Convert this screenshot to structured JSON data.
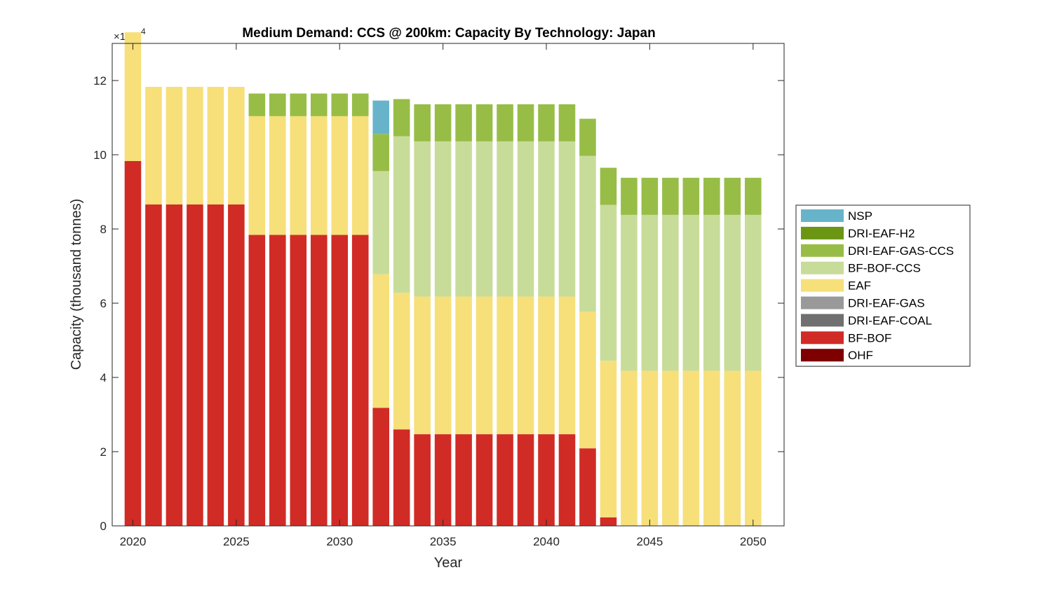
{
  "chart_data": {
    "type": "bar",
    "stacked": true,
    "title": "Medium Demand: CCS @ 200km: Capacity By Technology: Japan",
    "xlabel": "Year",
    "ylabel": "Capacity (thousand tonnes)",
    "y_multiplier_label": "×10",
    "y_multiplier_exponent": "4",
    "xlim": [
      2019,
      2051.5
    ],
    "ylim": [
      0,
      130000
    ],
    "x_ticks": [
      2020,
      2025,
      2030,
      2035,
      2040,
      2045,
      2050
    ],
    "y_ticks": [
      0,
      20000,
      40000,
      60000,
      80000,
      100000,
      120000
    ],
    "y_tick_labels": [
      "0",
      "2",
      "4",
      "6",
      "8",
      "10",
      "12"
    ],
    "grid": false,
    "legend_position": "right",
    "x": [
      2020,
      2021,
      2022,
      2023,
      2024,
      2025,
      2026,
      2027,
      2028,
      2029,
      2030,
      2031,
      2032,
      2033,
      2034,
      2035,
      2036,
      2037,
      2038,
      2039,
      2040,
      2041,
      2042,
      2043,
      2044,
      2045,
      2046,
      2047,
      2048,
      2049,
      2050
    ],
    "series": [
      {
        "name": "OHF",
        "color": "#7e0000",
        "values": [
          0,
          0,
          0,
          0,
          0,
          0,
          0,
          0,
          0,
          0,
          0,
          0,
          0,
          0,
          0,
          0,
          0,
          0,
          0,
          0,
          0,
          0,
          0,
          0,
          0,
          0,
          0,
          0,
          0,
          0,
          0
        ]
      },
      {
        "name": "BF-BOF",
        "color": "#d12b26",
        "values": [
          98300,
          86600,
          86600,
          86600,
          86600,
          86600,
          78400,
          78400,
          78400,
          78400,
          78400,
          78400,
          31800,
          26000,
          24700,
          24700,
          24700,
          24700,
          24700,
          24700,
          24700,
          24700,
          20900,
          2300,
          0,
          0,
          0,
          0,
          0,
          0,
          0
        ]
      },
      {
        "name": "DRI-EAF-COAL",
        "color": "#707070",
        "values": [
          0,
          0,
          0,
          0,
          0,
          0,
          0,
          0,
          0,
          0,
          0,
          0,
          0,
          0,
          0,
          0,
          0,
          0,
          0,
          0,
          0,
          0,
          0,
          0,
          0,
          0,
          0,
          0,
          0,
          0,
          0
        ]
      },
      {
        "name": "DRI-EAF-GAS",
        "color": "#999999",
        "values": [
          0,
          0,
          0,
          0,
          0,
          0,
          0,
          0,
          0,
          0,
          0,
          0,
          0,
          0,
          0,
          0,
          0,
          0,
          0,
          0,
          0,
          0,
          0,
          0,
          0,
          0,
          0,
          0,
          0,
          0,
          0
        ]
      },
      {
        "name": "EAF",
        "color": "#f7df7a",
        "values": [
          34700,
          31700,
          31700,
          31700,
          31700,
          31700,
          32000,
          32000,
          32000,
          32000,
          32000,
          32000,
          36000,
          36800,
          37100,
          37100,
          37100,
          37100,
          37100,
          37100,
          37100,
          37100,
          36800,
          42200,
          41800,
          41800,
          41800,
          41800,
          41800,
          41800,
          41800
        ]
      },
      {
        "name": "BF-BOF-CCS",
        "color": "#c8dc9a",
        "values": [
          0,
          0,
          0,
          0,
          0,
          0,
          0,
          0,
          0,
          0,
          0,
          0,
          27800,
          42200,
          41800,
          41800,
          41800,
          41800,
          41800,
          41800,
          41800,
          41800,
          42000,
          42000,
          42000,
          42000,
          42000,
          42000,
          42000,
          42000,
          42000
        ]
      },
      {
        "name": "DRI-EAF-GAS-CCS",
        "color": "#97bd47",
        "values": [
          0,
          0,
          0,
          0,
          0,
          0,
          6100,
          6100,
          6100,
          6100,
          6100,
          6100,
          10000,
          10000,
          10000,
          10000,
          10000,
          10000,
          10000,
          10000,
          10000,
          10000,
          10000,
          10000,
          10000,
          10000,
          10000,
          10000,
          10000,
          10000,
          10000
        ]
      },
      {
        "name": "DRI-EAF-H2",
        "color": "#6b9614",
        "values": [
          0,
          0,
          0,
          0,
          0,
          0,
          0,
          0,
          0,
          0,
          0,
          0,
          0,
          0,
          0,
          0,
          0,
          0,
          0,
          0,
          0,
          0,
          0,
          0,
          0,
          0,
          0,
          0,
          0,
          0,
          0
        ]
      },
      {
        "name": "NSP",
        "color": "#67b4ca",
        "values": [
          0,
          0,
          0,
          0,
          0,
          0,
          0,
          0,
          0,
          0,
          0,
          0,
          9000,
          0,
          0,
          0,
          0,
          0,
          0,
          0,
          0,
          0,
          0,
          0,
          0,
          0,
          0,
          0,
          0,
          0,
          0
        ]
      }
    ],
    "legend_order": [
      "NSP",
      "DRI-EAF-H2",
      "DRI-EAF-GAS-CCS",
      "BF-BOF-CCS",
      "EAF",
      "DRI-EAF-GAS",
      "DRI-EAF-COAL",
      "BF-BOF",
      "OHF"
    ]
  }
}
